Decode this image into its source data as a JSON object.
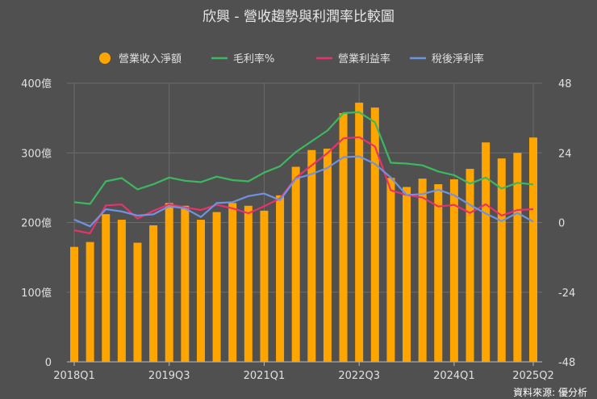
{
  "chart_data": {
    "type": "bar+line",
    "title": "欣興 - 營收趨勢與利潤率比較圖",
    "source": "資料來源: 優分析",
    "categories": [
      "2018Q1",
      "2018Q2",
      "2018Q3",
      "2018Q4",
      "2019Q1",
      "2019Q2",
      "2019Q3",
      "2019Q4",
      "2020Q1",
      "2020Q2",
      "2020Q3",
      "2020Q4",
      "2021Q1",
      "2021Q2",
      "2021Q3",
      "2021Q4",
      "2022Q1",
      "2022Q2",
      "2022Q3",
      "2022Q4",
      "2023Q1",
      "2023Q2",
      "2023Q3",
      "2023Q4",
      "2024Q1",
      "2024Q2",
      "2024Q3",
      "2024Q4",
      "2025Q1",
      "2025Q2"
    ],
    "x_tick_labels": [
      "2018Q1",
      "2019Q3",
      "2021Q1",
      "2022Q3",
      "2024Q1",
      "2025Q2"
    ],
    "left_axis": {
      "ylim": [
        0,
        400
      ],
      "ticks": [
        "0",
        "100億",
        "200億",
        "300億",
        "400億"
      ]
    },
    "right_axis": {
      "ylim": [
        -48,
        48
      ],
      "ticks": [
        "-48",
        "-24",
        "0",
        "24",
        "48"
      ]
    },
    "grid": true,
    "legend_position": "top",
    "series": [
      {
        "name": "營業收入淨額",
        "kind": "bar",
        "axis": "left",
        "color": "#FFA500",
        "values": [
          165,
          172,
          212,
          204,
          171,
          196,
          228,
          224,
          204,
          215,
          228,
          224,
          217,
          239,
          280,
          304,
          306,
          357,
          372,
          365,
          264,
          251,
          263,
          255,
          262,
          277,
          315,
          292,
          300,
          322
        ]
      },
      {
        "name": "毛利率%",
        "kind": "line",
        "axis": "right",
        "color": "#3DB860",
        "values": [
          7.0,
          6.4,
          14.2,
          15.3,
          11.4,
          13.2,
          15.5,
          14.4,
          13.9,
          15.8,
          14.6,
          14.2,
          17.2,
          19.4,
          24.3,
          28.0,
          31.7,
          37.7,
          38.0,
          34.5,
          20.6,
          20.3,
          19.7,
          17.6,
          16.3,
          13.4,
          15.5,
          11.7,
          13.7,
          13.1
        ]
      },
      {
        "name": "營業利益率",
        "kind": "line",
        "axis": "right",
        "color": "#E8336A",
        "values": [
          -2.7,
          -3.7,
          5.9,
          6.2,
          1.4,
          4.0,
          6.3,
          5.2,
          4.3,
          6.1,
          4.9,
          3.2,
          5.6,
          8.3,
          15.4,
          19.7,
          23.9,
          29.0,
          29.4,
          26.2,
          11.1,
          9.5,
          8.6,
          5.5,
          6.1,
          3.3,
          6.3,
          2.4,
          4.3,
          4.6
        ]
      },
      {
        "name": "稅後淨利率",
        "kind": "line",
        "axis": "right",
        "color": "#6F93E0",
        "values": [
          1.0,
          -1.3,
          4.6,
          3.8,
          2.4,
          2.8,
          5.6,
          4.9,
          1.9,
          6.7,
          7.0,
          9.1,
          10.0,
          7.7,
          15.1,
          16.7,
          18.8,
          22.5,
          22.8,
          20.2,
          15.5,
          9.5,
          9.8,
          11.3,
          9.4,
          6.1,
          3.1,
          0.5,
          3.3,
          0.3
        ]
      }
    ]
  }
}
